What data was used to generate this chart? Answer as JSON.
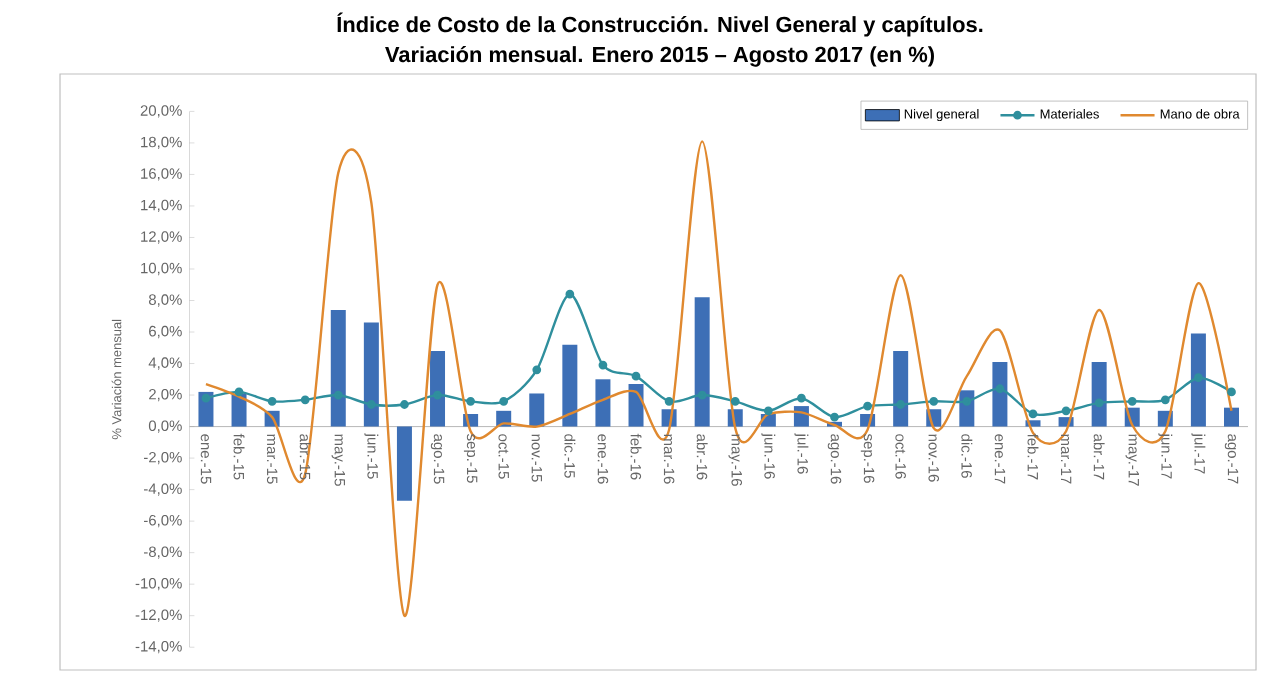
{
  "chart_data": {
    "type": "bar",
    "title": "Índice de Costo de la Construcción. Nivel General y capítulos.",
    "subtitle": "Variación mensual. Enero 2015 – Agosto 2017 (en %)",
    "ylabel": "% Variación mensual",
    "categories": [
      "ene.-15",
      "feb.-15",
      "mar.-15",
      "abr.-15",
      "may.-15",
      "jun.-15",
      null,
      "ago.-15",
      "sep.-15",
      "oct.-15",
      "nov.-15",
      "dic.-15",
      "ene.-16",
      "feb.-16",
      "mar.-16",
      "abr.-16",
      "may.-16",
      "jun.-16",
      "jul.-16",
      "ago.-16",
      "sep.-16",
      "oct.-16",
      "nov.-16",
      "dic.-16",
      "ene.-17",
      "feb.-17",
      "mar.-17",
      "abr.-17",
      "may.-17",
      "jun.-17",
      "jul.-17",
      "ago.-17"
    ],
    "series": [
      {
        "name": "Nivel general",
        "color": "#3d6fb6",
        "values": [
          2.2,
          2.1,
          1.0,
          0.0,
          7.4,
          6.6,
          -4.7,
          4.8,
          0.8,
          1.0,
          2.1,
          5.2,
          3.0,
          2.7,
          1.1,
          8.2,
          1.1,
          0.8,
          1.3,
          0.3,
          0.8,
          4.8,
          1.1,
          2.3,
          4.1,
          0.4,
          0.6,
          4.1,
          1.2,
          1.0,
          5.9,
          1.2
        ]
      },
      {
        "name": "Materiales",
        "type": "line",
        "color": "#2f8f9d",
        "marker": "circle",
        "values": [
          1.8,
          2.2,
          1.6,
          1.7,
          2.0,
          1.4,
          1.4,
          2.0,
          1.6,
          1.6,
          3.6,
          8.4,
          3.9,
          3.2,
          1.6,
          2.0,
          1.6,
          1.0,
          1.8,
          0.6,
          1.3,
          1.4,
          1.6,
          1.6,
          2.4,
          0.8,
          1.0,
          1.5,
          1.6,
          1.7,
          3.1,
          2.2
        ]
      },
      {
        "name": "Mano de obra",
        "type": "line",
        "color": "#e0892f",
        "marker": "none",
        "values": [
          2.7,
          1.9,
          0.6,
          -3.0,
          16.1,
          14.2,
          -12.0,
          9.0,
          -0.3,
          0.2,
          0.0,
          0.8,
          1.7,
          2.2,
          -0.2,
          18.1,
          -0.1,
          0.8,
          0.9,
          0.1,
          -0.2,
          9.6,
          -0.1,
          3.2,
          6.1,
          -0.4,
          -0.3,
          7.4,
          0.1,
          -0.3,
          9.1,
          1.0
        ]
      }
    ],
    "ylim": [
      -14,
      20
    ],
    "yticks": [
      {
        "value": -14,
        "label": "-14,0%"
      },
      {
        "value": -12,
        "label": "-12,0%"
      },
      {
        "value": -10,
        "label": "-10,0%"
      },
      {
        "value": -8,
        "label": "-8,0%"
      },
      {
        "value": -6,
        "label": "-6,0%"
      },
      {
        "value": -4,
        "label": "-4,0%"
      },
      {
        "value": -2,
        "label": "-2,0%"
      },
      {
        "value": 0,
        "label": "0,0%"
      },
      {
        "value": 2,
        "label": "2,0%"
      },
      {
        "value": 4,
        "label": "4,0%"
      },
      {
        "value": 6,
        "label": "6,0%"
      },
      {
        "value": 8,
        "label": "8,0%"
      },
      {
        "value": 10,
        "label": "10,0%"
      },
      {
        "value": 12,
        "label": "12,0%"
      },
      {
        "value": 14,
        "label": "14,0%"
      },
      {
        "value": 16,
        "label": "16,0%"
      },
      {
        "value": 18,
        "label": "18,0%"
      },
      {
        "value": 20,
        "label": "20,0%"
      }
    ],
    "legend": "top right"
  }
}
